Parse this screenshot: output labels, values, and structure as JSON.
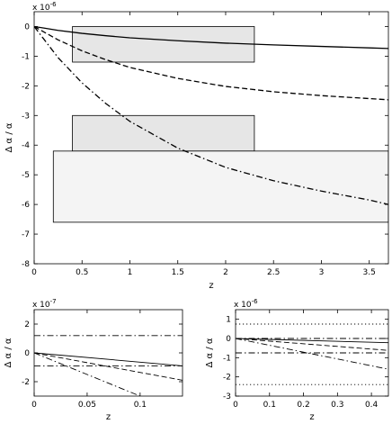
{
  "chart_data": [
    {
      "type": "line",
      "exponent_label": "x 10",
      "exponent_power": "-6",
      "xlabel": "z",
      "ylabel": "Δ α / α",
      "xlim": [
        0,
        3.7
      ],
      "ylim": [
        -8,
        0.5
      ],
      "xticks": [
        0,
        0.5,
        1,
        1.5,
        2,
        2.5,
        3,
        3.5
      ],
      "xtick_labels": [
        "0",
        "0.5",
        "1",
        "1.5",
        "2",
        "2.5",
        "3",
        "3.5"
      ],
      "yticks": [
        0,
        -1,
        -2,
        -3,
        -4,
        -5,
        -6,
        -7,
        -8
      ],
      "ytick_labels": [
        "0",
        "-1",
        "-2",
        "-3",
        "-4",
        "-5",
        "-6",
        "-7",
        "-8"
      ],
      "grid": false,
      "boxes": [
        {
          "x": [
            0.4,
            2.3
          ],
          "y": [
            -1.2,
            0.0
          ],
          "fill": "#e6e6e6"
        },
        {
          "x": [
            0.4,
            2.3
          ],
          "y": [
            -4.2,
            -3.0
          ],
          "fill": "#e6e6e6"
        },
        {
          "x": [
            0.2,
            3.7
          ],
          "y": [
            -6.6,
            -4.2
          ],
          "fill": "#f4f4f4"
        }
      ],
      "series": [
        {
          "style": "solid",
          "x": [
            0,
            0.1,
            0.25,
            0.5,
            0.75,
            1.0,
            1.5,
            2.0,
            2.5,
            3.0,
            3.5,
            3.7
          ],
          "values": [
            0,
            -0.05,
            -0.13,
            -0.23,
            -0.31,
            -0.38,
            -0.48,
            -0.56,
            -0.62,
            -0.67,
            -0.72,
            -0.74
          ]
        },
        {
          "style": "dashed",
          "x": [
            0,
            0.1,
            0.25,
            0.5,
            0.75,
            1.0,
            1.5,
            2.0,
            2.5,
            3.0,
            3.5,
            3.7
          ],
          "values": [
            0,
            -0.18,
            -0.45,
            -0.82,
            -1.12,
            -1.38,
            -1.75,
            -2.02,
            -2.2,
            -2.33,
            -2.43,
            -2.47
          ]
        },
        {
          "style": "dashdot",
          "x": [
            0,
            0.1,
            0.25,
            0.5,
            0.75,
            1.0,
            1.5,
            2.0,
            2.5,
            3.0,
            3.5,
            3.7
          ],
          "values": [
            0,
            -0.42,
            -1.05,
            -1.9,
            -2.6,
            -3.2,
            -4.1,
            -4.75,
            -5.2,
            -5.55,
            -5.85,
            -6.0
          ]
        }
      ]
    },
    {
      "type": "line",
      "exponent_label": "x 10",
      "exponent_power": "-7",
      "xlabel": "z",
      "ylabel": "Δ α / α",
      "xlim": [
        0,
        0.14
      ],
      "ylim": [
        -3,
        3
      ],
      "xticks": [
        0,
        0.05,
        0.1
      ],
      "xtick_labels": [
        "0",
        "0.05",
        "0.1"
      ],
      "yticks": [
        2,
        0,
        -2
      ],
      "ytick_labels": [
        "2",
        "0",
        "-2"
      ],
      "grid": false,
      "series": [
        {
          "style": "dashdot",
          "x": [
            0,
            0.14
          ],
          "values": [
            1.2,
            1.2
          ]
        },
        {
          "style": "dashdot",
          "x": [
            0,
            0.14
          ],
          "values": [
            -0.9,
            -0.9
          ]
        },
        {
          "style": "solid",
          "x": [
            0,
            0.14
          ],
          "values": [
            0,
            -0.9
          ]
        },
        {
          "style": "dashed",
          "x": [
            0,
            0.14
          ],
          "values": [
            0,
            -1.9
          ]
        },
        {
          "style": "dashdot",
          "x": [
            0,
            0.1
          ],
          "values": [
            0,
            -3.0
          ]
        }
      ]
    },
    {
      "type": "line",
      "exponent_label": "x 10",
      "exponent_power": "-6",
      "xlabel": "z",
      "ylabel": "Δ α / α",
      "xlim": [
        0,
        0.45
      ],
      "ylim": [
        -3,
        1.5
      ],
      "xticks": [
        0,
        0.1,
        0.2,
        0.3,
        0.4
      ],
      "xtick_labels": [
        "0",
        "0.1",
        "0.2",
        "0.3",
        "0.4"
      ],
      "yticks": [
        1,
        0,
        -1,
        -2,
        -3
      ],
      "ytick_labels": [
        "1",
        "0",
        "-1",
        "-2",
        "-3"
      ],
      "grid": false,
      "series": [
        {
          "style": "dotted",
          "x": [
            0,
            0.45
          ],
          "values": [
            0.75,
            0.75
          ]
        },
        {
          "style": "dotted",
          "x": [
            0,
            0.45
          ],
          "values": [
            -2.4,
            -2.4
          ]
        },
        {
          "style": "dashdot",
          "x": [
            0,
            0.45
          ],
          "values": [
            0.0,
            0.0
          ]
        },
        {
          "style": "dashdot",
          "x": [
            0,
            0.45
          ],
          "values": [
            -0.75,
            -0.75
          ]
        },
        {
          "style": "solid",
          "x": [
            0,
            0.45
          ],
          "values": [
            0,
            -0.22
          ]
        },
        {
          "style": "dashed",
          "x": [
            0,
            0.45
          ],
          "values": [
            0,
            -0.62
          ]
        },
        {
          "style": "dashdot",
          "x": [
            0,
            0.45
          ],
          "values": [
            0,
            -1.6
          ]
        }
      ]
    }
  ]
}
